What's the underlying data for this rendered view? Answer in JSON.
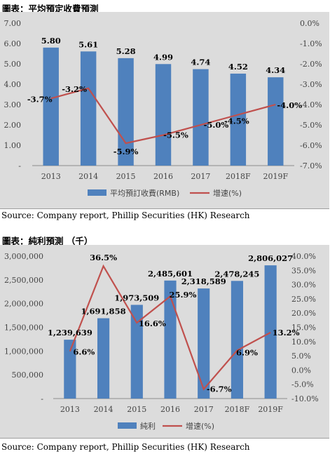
{
  "figures": [
    {
      "title": "圖表：平均預定收費預測",
      "source": "Source: Company report, Phillip Securities (HK) Research"
    },
    {
      "title": "圖表：純利預測 （千）",
      "source": "Source: Company report, Phillip Securities (HK) Research"
    }
  ],
  "chart_data": [
    {
      "type": "bar",
      "categories": [
        "2013",
        "2014",
        "2015",
        "2016",
        "2017",
        "2018F",
        "2019F"
      ],
      "series": [
        {
          "name": "平均預訂收費(RMB)",
          "type": "bar",
          "axis": "left",
          "values": [
            5.8,
            5.61,
            5.28,
            4.99,
            4.74,
            4.52,
            4.34
          ],
          "labels": [
            "5.80",
            "5.61",
            "5.28",
            "4.99",
            "4.74",
            "4.52",
            "4.34"
          ]
        },
        {
          "name": "增速(%)",
          "type": "line",
          "axis": "right",
          "values": [
            -3.7,
            -3.2,
            -5.9,
            -5.5,
            -5.0,
            -4.5,
            -4.0
          ],
          "labels": [
            "-3.7%",
            "-3.2%",
            "-5.9%",
            "-5.5%",
            "-5.0%",
            "-4.5%",
            "-4.0%"
          ]
        }
      ],
      "ylim": [
        0,
        7
      ],
      "yticks": [
        "-",
        "1.00",
        "2.00",
        "3.00",
        "4.00",
        "5.00",
        "6.00",
        "7.00"
      ],
      "y2lim": [
        -7,
        0
      ],
      "y2ticks": [
        "-7.0%",
        "-6.0%",
        "-5.0%",
        "-4.0%",
        "-3.0%",
        "-2.0%",
        "-1.0%",
        "0.0%"
      ],
      "legend": "bottom",
      "grid": false,
      "colors": {
        "bar": "#4f81bd",
        "line": "#c0504d"
      }
    },
    {
      "type": "bar",
      "categories": [
        "2013",
        "2014",
        "2015",
        "2016",
        "2017",
        "2018F",
        "2019F"
      ],
      "series": [
        {
          "name": "純利",
          "type": "bar",
          "axis": "left",
          "values": [
            1239639,
            1691858,
            1973509,
            2485601,
            2318589,
            2478245,
            2806027
          ],
          "labels": [
            "1,239,639",
            "1,691,858",
            "1,973,509",
            "2,485,601",
            "2,318,589",
            "2,478,245",
            "2,806,027"
          ]
        },
        {
          "name": "增速(%)",
          "type": "line",
          "axis": "right",
          "values": [
            6.6,
            36.5,
            16.6,
            25.9,
            -6.7,
            6.9,
            13.2
          ],
          "labels": [
            "6.6%",
            "36.5%",
            "16.6%",
            "25.9%",
            "-6.7%",
            "6.9%",
            "13.2%"
          ]
        }
      ],
      "ylim": [
        0,
        3000000
      ],
      "yticks": [
        "-",
        "500,000",
        "1,000,000",
        "1,500,000",
        "2,000,000",
        "2,500,000",
        "3,000,000"
      ],
      "y2lim": [
        -10,
        40
      ],
      "y2ticks": [
        "-10.0%",
        "-5.0%",
        "0.0%",
        "5.0%",
        "10.0%",
        "15.0%",
        "20.0%",
        "25.0%",
        "30.0%",
        "35.0%",
        "40.0%"
      ],
      "legend": "bottom",
      "grid": false,
      "colors": {
        "bar": "#4f81bd",
        "line": "#c0504d"
      }
    }
  ]
}
